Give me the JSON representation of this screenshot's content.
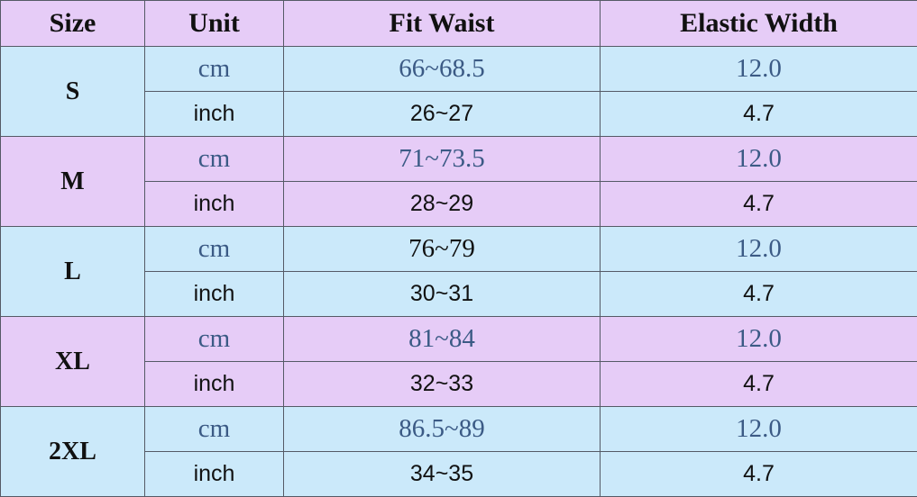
{
  "headers": [
    "Size",
    "Unit",
    "Fit Waist",
    "Elastic Width"
  ],
  "colors": {
    "header_bg": "#e6ccf7",
    "row_blue": "#cbe9fa",
    "row_purple": "#e6ccf7",
    "cm_text": "#3b5a85",
    "dark_text": "#111111"
  },
  "rows": [
    {
      "size": "S",
      "band": "blue",
      "cm_unit": "cm",
      "cm_waist": "66~68.5",
      "cm_waist_color": "#3b5a85",
      "cm_elastic": "12.0",
      "inch_unit": "inch",
      "inch_waist": "26~27",
      "inch_elastic": "4.7"
    },
    {
      "size": "M",
      "band": "purple",
      "cm_unit": "cm",
      "cm_waist": "71~73.5",
      "cm_waist_color": "#3b5a85",
      "cm_elastic": "12.0",
      "inch_unit": "inch",
      "inch_waist": "28~29",
      "inch_elastic": "4.7"
    },
    {
      "size": "L",
      "band": "blue",
      "cm_unit": "cm",
      "cm_waist": "76~79",
      "cm_waist_color": "#111111",
      "cm_elastic": "12.0",
      "inch_unit": "inch",
      "inch_waist": "30~31",
      "inch_elastic": "4.7"
    },
    {
      "size": "XL",
      "band": "purple",
      "cm_unit": "cm",
      "cm_waist": "81~84",
      "cm_waist_color": "#3b5a85",
      "cm_elastic": "12.0",
      "inch_unit": "inch",
      "inch_waist": "32~33",
      "inch_elastic": "4.7"
    },
    {
      "size": "2XL",
      "band": "blue",
      "cm_unit": "cm",
      "cm_waist": "86.5~89",
      "cm_waist_color": "#3b5a85",
      "cm_elastic": "12.0",
      "inch_unit": "inch",
      "inch_waist": "34~35",
      "inch_elastic": "4.7"
    }
  ]
}
